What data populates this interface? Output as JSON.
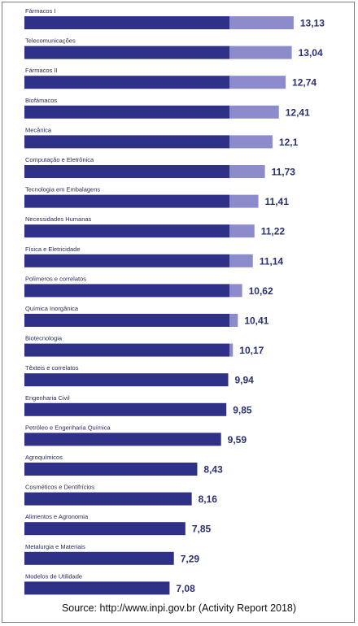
{
  "chart_data": {
    "type": "bar",
    "orientation": "horizontal",
    "categories": [
      "Fármacos I",
      "Telecomunicações",
      "Fármacos II",
      "Biofámacos",
      "Mecânica",
      "Computação e Eletrônica",
      "Tecnologia em Embalagens",
      "Necessidades Humanas",
      "Física e Eletricidade",
      "Polímeros e correlatos",
      "Química Inorgânica",
      "Biotecnologia",
      "Têxteis e correlatos",
      "Engenharia Civil",
      "Petróleo e Engenharia Química",
      "Agroquímicos",
      "Cosméticos e Dentifrícios",
      "Alimentos e Agronomia",
      "Metalurgia e Materiais",
      "Modelos de Utilidade"
    ],
    "values": [
      13.13,
      13.04,
      12.74,
      12.41,
      12.1,
      11.73,
      11.41,
      11.22,
      11.14,
      10.62,
      10.41,
      10.17,
      9.94,
      9.85,
      9.59,
      8.43,
      8.16,
      7.85,
      7.29,
      7.08
    ],
    "value_labels": [
      "13,13",
      "13,04",
      "12,74",
      "12,41",
      "12,1",
      "11,73",
      "11,41",
      "11,22",
      "11,14",
      "10,62",
      "10,41",
      "10,17",
      "9,94",
      "9,85",
      "9,59",
      "8,43",
      "8,16",
      "7,85",
      "7,29",
      "7,08"
    ],
    "reference_value": 10,
    "grid": false,
    "legend": "none",
    "colors": {
      "bar_base": "#2e3187",
      "bar_excess": "#8c8ccc",
      "label_text": "#2b2b55",
      "value_text": "#2a3072"
    }
  },
  "source": "Source: http://www.inpi.gov.br (Activity Report 2018)"
}
